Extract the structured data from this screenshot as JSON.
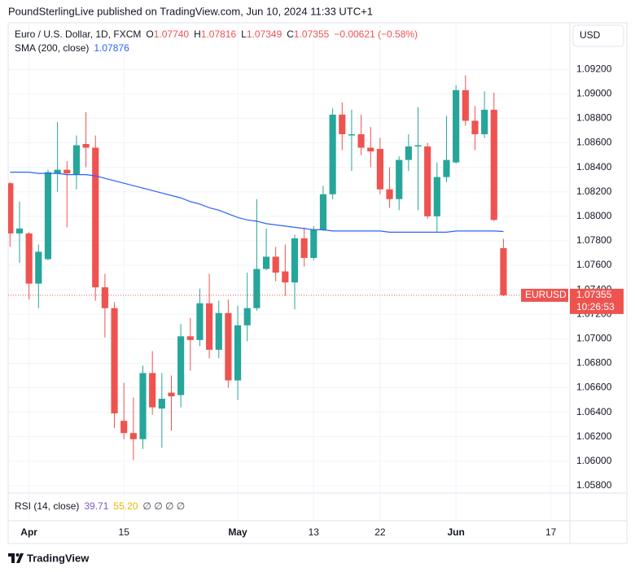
{
  "header": "PoundSterlingLive published on TradingView.com, Jun 10, 2024 11:33 UTC+1",
  "footer": "TradingView",
  "currency_button": "USD",
  "chart_data": {
    "type": "candlestick",
    "legend": {
      "symbol": "Euro / U.S. Dollar, 1D, FXCM",
      "ohlc": [
        {
          "key": "O",
          "value": "1.07740"
        },
        {
          "key": "H",
          "value": "1.07816"
        },
        {
          "key": "L",
          "value": "1.07349"
        },
        {
          "key": "C",
          "value": "1.07355"
        }
      ],
      "change": "−0.00621 (−0.58%)"
    },
    "up_color": "#26a69a",
    "down_color": "#ef5350",
    "x": [
      0,
      1,
      2,
      3,
      4,
      5,
      6,
      7,
      8,
      9,
      10,
      11,
      12,
      13,
      14,
      15,
      16,
      17,
      18,
      19,
      20,
      21,
      22,
      23,
      24,
      25,
      26,
      27,
      28,
      29,
      30,
      31,
      32,
      33,
      34,
      35,
      36,
      37,
      38,
      39,
      40,
      41,
      42,
      43,
      44,
      45,
      46,
      47,
      48,
      49,
      50,
      51,
      52
    ],
    "open": [
      1.0827,
      1.0786,
      1.0786,
      1.0745,
      1.0765,
      1.0835,
      1.0838,
      1.0834,
      1.0859,
      1.0856,
      1.0742,
      1.0725,
      1.0633,
      1.0623,
      1.0618,
      1.0672,
      1.0643,
      1.0656,
      1.0654,
      1.0702,
      1.0699,
      1.0729,
      1.0691,
      1.0721,
      1.0666,
      1.0711,
      1.0725,
      1.0757,
      1.0767,
      1.0755,
      1.0746,
      1.0782,
      1.0766,
      1.0789,
      1.0818,
      1.0883,
      1.0866,
      1.0867,
      1.0856,
      1.0855,
      1.0822,
      1.0814,
      1.0846,
      1.0857,
      1.0857,
      1.08,
      1.0832,
      1.0844,
      1.0903,
      1.0878,
      1.0867,
      1.0887,
      1.0774
    ],
    "high": [
      1.0828,
      1.0812,
      1.0787,
      1.0777,
      1.0838,
      1.0877,
      1.0845,
      1.0866,
      1.0885,
      1.0866,
      1.0753,
      1.073,
      1.0664,
      1.0652,
      1.0678,
      1.069,
      1.0672,
      1.067,
      1.0712,
      1.0717,
      1.0741,
      1.0753,
      1.0731,
      1.0732,
      1.0727,
      1.0754,
      1.0814,
      1.079,
      1.0775,
      1.0777,
      1.0785,
      1.0791,
      1.0792,
      1.0825,
      1.0888,
      1.0893,
      1.0887,
      1.0883,
      1.0873,
      1.0864,
      1.084,
      1.0849,
      1.0867,
      1.0889,
      1.086,
      1.0844,
      1.0882,
      1.0907,
      1.0915,
      1.089,
      1.0902,
      1.0901,
      1.07816
    ],
    "low": [
      1.0775,
      1.0762,
      1.0732,
      1.0725,
      1.0764,
      1.082,
      1.0791,
      1.0822,
      1.084,
      1.0731,
      1.0701,
      1.0627,
      1.0618,
      1.0601,
      1.061,
      1.0638,
      1.0611,
      1.0625,
      1.0644,
      1.0674,
      1.0694,
      1.0684,
      1.0684,
      1.066,
      1.065,
      1.0698,
      1.0723,
      1.0756,
      1.0747,
      1.0735,
      1.0724,
      1.0759,
      1.0764,
      1.0788,
      1.0814,
      1.0854,
      1.0837,
      1.085,
      1.084,
      1.0818,
      1.0807,
      1.0805,
      1.0837,
      1.0805,
      1.0798,
      1.0787,
      1.0828,
      1.0843,
      1.0874,
      1.0854,
      1.0864,
      1.0796,
      1.07349
    ],
    "close": [
      1.0786,
      1.079,
      1.0745,
      1.0771,
      1.0836,
      1.0838,
      1.0835,
      1.0858,
      1.0856,
      1.0742,
      1.0725,
      1.0639,
      1.0623,
      1.0618,
      1.0672,
      1.0644,
      1.0651,
      1.0653,
      1.0702,
      1.0699,
      1.0729,
      1.0691,
      1.0721,
      1.0666,
      1.0711,
      1.0725,
      1.0757,
      1.0767,
      1.0754,
      1.0746,
      1.0782,
      1.0766,
      1.0789,
      1.0818,
      1.0883,
      1.0867,
      1.0867,
      1.0856,
      1.0853,
      1.0822,
      1.0814,
      1.0846,
      1.0857,
      1.0858,
      1.08,
      1.0832,
      1.0846,
      1.0903,
      1.0878,
      1.0867,
      1.0887,
      1.0797,
      1.07355
    ],
    "indicator": {
      "name": "SMA (200, close)",
      "color": "#2962ff",
      "values": [
        1.0836,
        1.0836,
        1.0836,
        1.0835,
        1.0835,
        1.0835,
        1.0834,
        1.0834,
        1.0834,
        1.0833,
        1.0831,
        1.0829,
        1.0827,
        1.0825,
        1.0823,
        1.0821,
        1.0819,
        1.0817,
        1.0815,
        1.0812,
        1.081,
        1.0807,
        1.0805,
        1.0802,
        1.0799,
        1.0797,
        1.0796,
        1.0794,
        1.0793,
        1.0792,
        1.0791,
        1.079,
        1.0789,
        1.0789,
        1.0788,
        1.0788,
        1.0788,
        1.0788,
        1.0788,
        1.0788,
        1.0787,
        1.0787,
        1.0787,
        1.0787,
        1.0787,
        1.0787,
        1.0787,
        1.0788,
        1.0788,
        1.0788,
        1.0788,
        1.0788,
        1.07876
      ]
    },
    "last_price": {
      "symbol": "EURUSD",
      "value": 1.07355,
      "countdown": "10:26:53"
    },
    "rsi": {
      "name": "RSI (14, close)",
      "value_a": "39.71",
      "value_b": "55.20",
      "na_marks": "∅ ∅ ∅ ∅"
    },
    "xlim": [
      -0.2,
      59
    ],
    "xticks": [
      {
        "value": 2,
        "label": "Apr"
      },
      {
        "value": 12,
        "label": "15"
      },
      {
        "value": 24,
        "label": "May"
      },
      {
        "value": 32,
        "label": "13"
      },
      {
        "value": 39,
        "label": "22"
      },
      {
        "value": 47,
        "label": "Jun"
      },
      {
        "value": 57,
        "label": "17"
      }
    ],
    "ylim": [
      1.0574,
      1.0958
    ],
    "yticks": [
      {
        "value": 1.058,
        "label": "1.05800"
      },
      {
        "value": 1.06,
        "label": "1.06000"
      },
      {
        "value": 1.062,
        "label": "1.06200"
      },
      {
        "value": 1.064,
        "label": "1.06400"
      },
      {
        "value": 1.066,
        "label": "1.06600"
      },
      {
        "value": 1.068,
        "label": "1.06800"
      },
      {
        "value": 1.07,
        "label": "1.07000"
      },
      {
        "value": 1.072,
        "label": "1.07200"
      },
      {
        "value": 1.074,
        "label": "1.07400"
      },
      {
        "value": 1.076,
        "label": "1.07600"
      },
      {
        "value": 1.078,
        "label": "1.07800"
      },
      {
        "value": 1.08,
        "label": "1.08000"
      },
      {
        "value": 1.082,
        "label": "1.08200"
      },
      {
        "value": 1.084,
        "label": "1.08400"
      },
      {
        "value": 1.086,
        "label": "1.08600"
      },
      {
        "value": 1.088,
        "label": "1.08800"
      },
      {
        "value": 1.09,
        "label": "1.09000"
      },
      {
        "value": 1.092,
        "label": "1.09200"
      }
    ],
    "grid": true
  }
}
